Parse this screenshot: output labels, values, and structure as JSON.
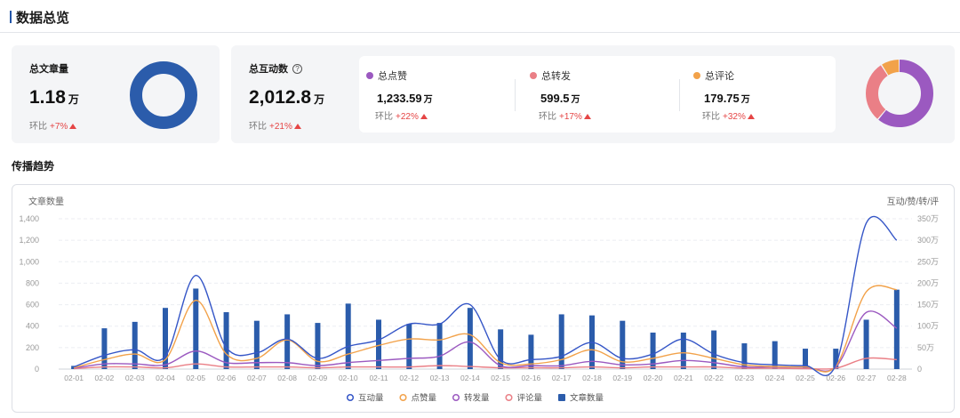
{
  "header": {
    "title": "数据总览"
  },
  "total_articles": {
    "label": "总文章量",
    "value": "1.18",
    "unit": "万",
    "compare_label": "环比",
    "compare_value": "+7%",
    "donut_color": "#2b5cab"
  },
  "total_interactions": {
    "label": "总互动数",
    "help_icon": "?",
    "value": "2,012.8",
    "unit": "万",
    "compare_label": "环比",
    "compare_value": "+21%"
  },
  "breakdown": [
    {
      "label": "总点赞",
      "value": "1,233.59",
      "unit": "万",
      "compare_label": "环比",
      "compare_value": "+22%",
      "color": "#9b59c0"
    },
    {
      "label": "总转发",
      "value": "599.5",
      "unit": "万",
      "compare_label": "环比",
      "compare_value": "+17%",
      "color": "#ea7f86"
    },
    {
      "label": "总评论",
      "value": "179.75",
      "unit": "万",
      "compare_label": "环比",
      "compare_value": "+32%",
      "color": "#f2a24a"
    }
  ],
  "section": {
    "trend_title": "传播趋势"
  },
  "chart_data": {
    "type": "bar",
    "ylabel_left": "文章数量",
    "ylabel_right": "互动/赞/转/评",
    "y_left_ticks": [
      "0",
      "200",
      "400",
      "600",
      "800",
      "1,000",
      "1,200",
      "1,400"
    ],
    "y_right_ticks": [
      "0",
      "50万",
      "100万",
      "150万",
      "200万",
      "250万",
      "300万",
      "350万"
    ],
    "ylim_left": [
      0,
      1400
    ],
    "ylim_right": [
      0,
      350
    ],
    "categories": [
      "02-01",
      "02-02",
      "02-03",
      "02-04",
      "02-05",
      "02-06",
      "02-07",
      "02-08",
      "02-09",
      "02-10",
      "02-11",
      "02-12",
      "02-13",
      "02-14",
      "02-15",
      "02-16",
      "02-17",
      "02-18",
      "02-19",
      "02-20",
      "02-21",
      "02-22",
      "02-23",
      "02-24",
      "02-25",
      "02-26",
      "02-27",
      "02-28"
    ],
    "bars": {
      "name": "文章数量",
      "color": "#2b5cab",
      "values": [
        30,
        380,
        440,
        570,
        750,
        530,
        450,
        510,
        430,
        610,
        460,
        420,
        430,
        570,
        370,
        320,
        510,
        500,
        450,
        340,
        340,
        360,
        240,
        260,
        190,
        190,
        460,
        740
      ]
    },
    "lines": [
      {
        "name": "互动量",
        "color": "#3556c7",
        "values": [
          5,
          32,
          45,
          30,
          218,
          50,
          38,
          70,
          25,
          53,
          68,
          105,
          105,
          150,
          22,
          22,
          30,
          62,
          25,
          35,
          70,
          35,
          15,
          10,
          8,
          10,
          340,
          300
        ]
      },
      {
        "name": "点赞量",
        "color": "#f2a24a",
        "values": [
          3,
          22,
          35,
          22,
          160,
          35,
          25,
          68,
          18,
          35,
          55,
          70,
          68,
          80,
          15,
          12,
          22,
          45,
          17,
          25,
          38,
          25,
          10,
          6,
          5,
          7,
          180,
          185
        ]
      },
      {
        "name": "转发量",
        "color": "#9b59c0",
        "values": [
          2,
          12,
          12,
          10,
          42,
          15,
          15,
          15,
          8,
          15,
          20,
          25,
          30,
          63,
          8,
          8,
          8,
          18,
          10,
          12,
          20,
          15,
          5,
          5,
          4,
          5,
          132,
          95
        ]
      },
      {
        "name": "评论量",
        "color": "#ea7f86",
        "values": [
          1,
          5,
          5,
          3,
          12,
          5,
          5,
          5,
          3,
          5,
          5,
          5,
          8,
          6,
          3,
          3,
          3,
          5,
          3,
          5,
          5,
          5,
          2,
          2,
          1,
          2,
          25,
          22
        ]
      }
    ],
    "legend": [
      "互动量",
      "点赞量",
      "转发量",
      "评论量",
      "文章数量"
    ],
    "legend_position": "bottom",
    "grid": true
  },
  "donut_right": {
    "segments": [
      {
        "name": "总点赞",
        "value": 1233.59,
        "color": "#9b59c0"
      },
      {
        "name": "总转发",
        "value": 599.5,
        "color": "#ea7f86"
      },
      {
        "name": "总评论",
        "value": 179.75,
        "color": "#f2a24a"
      }
    ]
  }
}
